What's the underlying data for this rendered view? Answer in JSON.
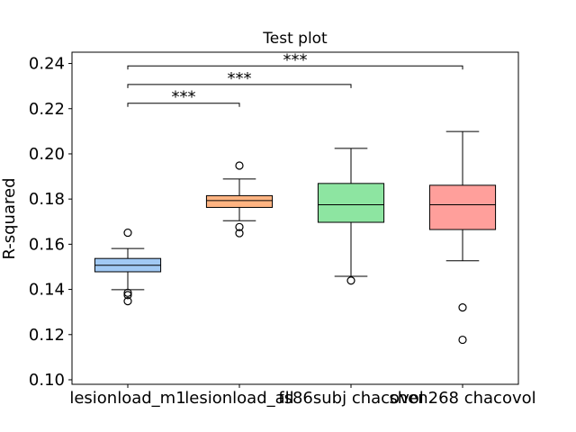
{
  "chart_data": {
    "type": "box",
    "title": "Test plot",
    "ylabel": "R-squared",
    "xlabel": "",
    "ylim": [
      0.098,
      0.245
    ],
    "yticks": [
      0.1,
      0.12,
      0.14,
      0.16,
      0.18,
      0.2,
      0.22,
      0.24
    ],
    "ytick_labels": [
      "0.10",
      "0.12",
      "0.14",
      "0.16",
      "0.18",
      "0.20",
      "0.22",
      "0.24"
    ],
    "categories": [
      "lesionload_m1",
      "lesionload_all",
      "fs86subj chacovol",
      "shen268 chacovol"
    ],
    "boxes": [
      {
        "q1": 0.1478,
        "median": 0.1507,
        "q3": 0.1537,
        "whisker_low": 0.1399,
        "whisker_high": 0.1581,
        "outliers": [
          0.1651,
          0.1385,
          0.1375,
          0.1348
        ],
        "color": "#a1c9f4"
      },
      {
        "q1": 0.1763,
        "median": 0.1793,
        "q3": 0.1815,
        "whisker_low": 0.1704,
        "whisker_high": 0.1889,
        "outliers": [
          0.1948,
          0.1676,
          0.1649
        ],
        "color": "#ffb482"
      },
      {
        "q1": 0.1697,
        "median": 0.1775,
        "q3": 0.1869,
        "whisker_low": 0.1458,
        "whisker_high": 0.2024,
        "outliers": [
          0.1439
        ],
        "color": "#8de5a1"
      },
      {
        "q1": 0.1665,
        "median": 0.1775,
        "q3": 0.1861,
        "whisker_low": 0.1527,
        "whisker_high": 0.2099,
        "outliers": [
          0.132,
          0.1177
        ],
        "color": "#ff9f9b"
      }
    ],
    "annotations": [
      {
        "from": 0,
        "to": 1,
        "label": "***",
        "y": 0.2224
      },
      {
        "from": 0,
        "to": 2,
        "label": "***",
        "y": 0.2307
      },
      {
        "from": 0,
        "to": 3,
        "label": "***",
        "y": 0.2389
      }
    ],
    "grid": false,
    "legend": "none"
  }
}
